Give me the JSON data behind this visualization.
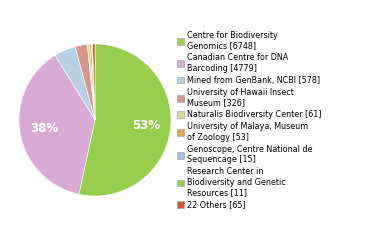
{
  "labels": [
    "Centre for Biodiversity\nGenomics [6748]",
    "Canadian Centre for DNA\nBarcoding [4779]",
    "Mined from GenBank, NCBI [578]",
    "University of Hawaii Insect\nMuseum [326]",
    "Naturalis Biodiversity Center [61]",
    "University of Malaya, Museum\nof Zoology [53]",
    "Genoscope, Centre National de\nSequencage [15]",
    "Research Center in\nBiodiversity and Genetic\nResources [11]",
    "22 Others [65]"
  ],
  "values": [
    6748,
    4779,
    578,
    326,
    61,
    53,
    15,
    11,
    65
  ],
  "colors": [
    "#97ce4e",
    "#d8aad4",
    "#b8d0e0",
    "#d4998a",
    "#d8d898",
    "#e8a850",
    "#a8c4dc",
    "#97ce4e",
    "#d95030"
  ],
  "startangle": 90,
  "background_color": "#ffffff",
  "pct_threshold": 5.0,
  "legend_fontsize": 5.8,
  "pct_fontsize": 8.5
}
